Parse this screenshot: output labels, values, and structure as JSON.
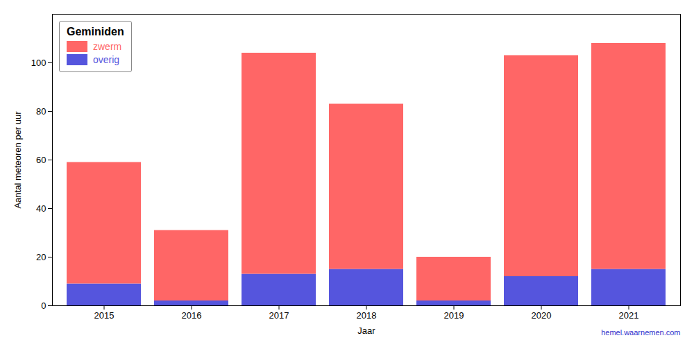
{
  "chart_data": {
    "type": "bar",
    "stacked": true,
    "title": "Geminiden",
    "xlabel": "Jaar",
    "ylabel": "Aantal meteoren per uur",
    "categories": [
      "2015",
      "2016",
      "2017",
      "2018",
      "2019",
      "2020",
      "2021"
    ],
    "series": [
      {
        "name": "overig",
        "color": "#5555DD",
        "values": [
          9,
          2,
          13,
          15,
          2,
          12,
          15
        ]
      },
      {
        "name": "zwerm",
        "color": "#FF6666",
        "values": [
          50,
          29,
          91,
          68,
          18,
          91,
          93
        ]
      }
    ],
    "ylim": [
      0,
      120
    ],
    "yticks": [
      0,
      20,
      40,
      60,
      80,
      100
    ],
    "grid": false,
    "legend": "upper left",
    "annotations": [
      {
        "text": "hemel.waarnemen.com",
        "color": "#3333CC"
      }
    ]
  }
}
